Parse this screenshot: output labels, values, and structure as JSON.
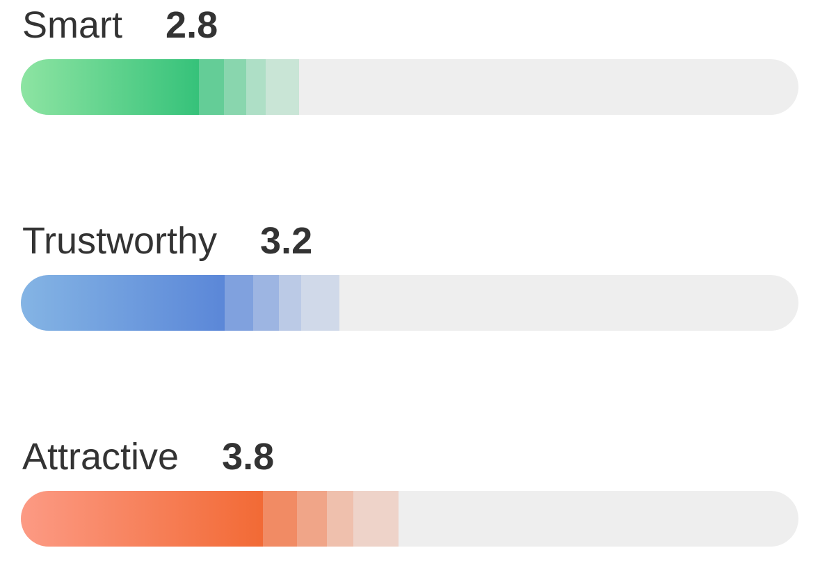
{
  "ratings": [
    {
      "label": "Smart",
      "value": 2.8,
      "colors": [
        "#8de4a2",
        "#36c27a"
      ]
    },
    {
      "label": "Trustworthy",
      "value": 3.2,
      "colors": [
        "#84b4e4",
        "#5b87d8"
      ]
    },
    {
      "label": "Attractive",
      "value": 3.8,
      "colors": [
        "#fc9a84",
        "#f26a35"
      ]
    }
  ]
}
